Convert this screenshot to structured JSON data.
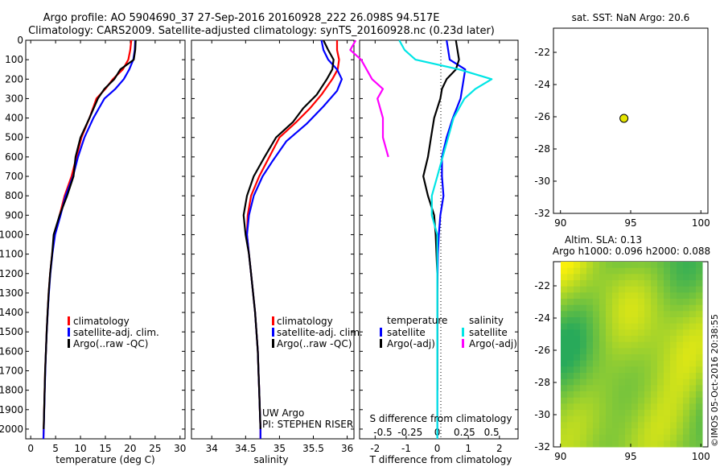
{
  "title_line1": "Argo profile: AO 5904690_37 27-Sep-2016 20160928_222 26.098S 94.517E",
  "title_line2": "Climatology: CARS2009. Satellite-adjusted climatology: synTS_20160928.nc (0.23d later)",
  "credit_line1": "UW Argo",
  "credit_line2": "PI: STEPHEN RISER",
  "watermark": "©IMOS 05-Oct-2016 20:38:55",
  "colors": {
    "climatology": "#ff0000",
    "satellite": "#0000ff",
    "argo": "#000000",
    "cyan": "#00e5e5",
    "magenta": "#ff00ff",
    "dot": "#e5e500"
  },
  "chart_data": [
    {
      "type": "line",
      "id": "temperature",
      "xlabel": "temperature (deg C)",
      "ylim": [
        2050,
        0
      ],
      "xlim": [
        -1,
        31
      ],
      "xticks": [
        0,
        5,
        10,
        15,
        20,
        25,
        30
      ],
      "yticks": [
        0,
        100,
        200,
        300,
        400,
        500,
        600,
        700,
        800,
        900,
        1000,
        1100,
        1200,
        1300,
        1400,
        1500,
        1600,
        1700,
        1800,
        1900,
        2000
      ],
      "legend": [
        "climatology",
        "satellite-adj. clim.",
        "Argo(..raw -QC)"
      ],
      "series": [
        {
          "name": "climatology",
          "color": "#ff0000",
          "points": [
            [
              20.2,
              0
            ],
            [
              20.0,
              50
            ],
            [
              19.6,
              100
            ],
            [
              18.5,
              150
            ],
            [
              16.5,
              200
            ],
            [
              15.0,
              250
            ],
            [
              13.2,
              300
            ],
            [
              11.8,
              400
            ],
            [
              10.2,
              500
            ],
            [
              9.2,
              600
            ],
            [
              8.2,
              700
            ],
            [
              6.8,
              800
            ],
            [
              5.8,
              900
            ],
            [
              4.8,
              1000
            ],
            [
              4.3,
              1100
            ],
            [
              3.9,
              1200
            ],
            [
              3.6,
              1300
            ],
            [
              3.4,
              1400
            ],
            [
              3.2,
              1500
            ],
            [
              3.05,
              1600
            ],
            [
              2.9,
              1700
            ],
            [
              2.8,
              1800
            ],
            [
              2.7,
              1900
            ],
            [
              2.6,
              2000
            ],
            [
              2.55,
              2050
            ]
          ]
        },
        {
          "name": "satellite-adj. clim.",
          "color": "#0000ff",
          "points": [
            [
              21.0,
              0
            ],
            [
              20.9,
              50
            ],
            [
              20.6,
              100
            ],
            [
              19.8,
              150
            ],
            [
              18.7,
              200
            ],
            [
              17.0,
              250
            ],
            [
              14.8,
              300
            ],
            [
              12.6,
              400
            ],
            [
              10.8,
              500
            ],
            [
              9.5,
              600
            ],
            [
              8.5,
              700
            ],
            [
              7.0,
              800
            ],
            [
              6.0,
              900
            ],
            [
              4.9,
              1000
            ],
            [
              4.35,
              1100
            ],
            [
              3.95,
              1200
            ],
            [
              3.65,
              1300
            ],
            [
              3.42,
              1400
            ],
            [
              3.22,
              1500
            ],
            [
              3.06,
              1600
            ],
            [
              2.92,
              1700
            ],
            [
              2.82,
              1800
            ],
            [
              2.72,
              1900
            ],
            [
              2.62,
              2000
            ],
            [
              2.56,
              2050
            ]
          ]
        },
        {
          "name": "Argo(..raw -QC)",
          "color": "#000000",
          "points": [
            [
              21.1,
              0
            ],
            [
              21.0,
              50
            ],
            [
              20.7,
              100
            ],
            [
              18.0,
              150
            ],
            [
              16.8,
              200
            ],
            [
              14.8,
              250
            ],
            [
              13.5,
              300
            ],
            [
              11.8,
              400
            ],
            [
              10.0,
              500
            ],
            [
              9.0,
              600
            ],
            [
              8.6,
              700
            ],
            [
              7.3,
              800
            ],
            [
              5.8,
              900
            ],
            [
              4.6,
              1000
            ],
            [
              4.3,
              1100
            ],
            [
              3.9,
              1200
            ],
            [
              3.6,
              1300
            ],
            [
              3.4,
              1400
            ],
            [
              3.2,
              1500
            ],
            [
              3.05,
              1600
            ],
            [
              2.9,
              1700
            ],
            [
              2.8,
              1800
            ],
            [
              2.7,
              1900
            ],
            [
              2.6,
              2000
            ]
          ]
        }
      ]
    },
    {
      "type": "line",
      "id": "salinity",
      "xlabel": "salinity",
      "ylim": [
        2050,
        0
      ],
      "xlim": [
        33.7,
        36.1
      ],
      "xticks": [
        34,
        34.5,
        35,
        35.5,
        36
      ],
      "legend": [
        "climatology",
        "satellite-adj. clim.",
        "Argo(..raw -QC)"
      ],
      "series": [
        {
          "name": "climatology",
          "color": "#ff0000",
          "points": [
            [
              35.85,
              0
            ],
            [
              35.85,
              50
            ],
            [
              35.88,
              100
            ],
            [
              35.86,
              150
            ],
            [
              35.78,
              200
            ],
            [
              35.62,
              280
            ],
            [
              35.45,
              350
            ],
            [
              35.25,
              420
            ],
            [
              35.0,
              500
            ],
            [
              34.85,
              600
            ],
            [
              34.7,
              700
            ],
            [
              34.58,
              800
            ],
            [
              34.53,
              900
            ],
            [
              34.52,
              1000
            ],
            [
              34.55,
              1100
            ],
            [
              34.58,
              1200
            ],
            [
              34.61,
              1300
            ],
            [
              34.64,
              1400
            ],
            [
              34.66,
              1500
            ],
            [
              34.68,
              1600
            ],
            [
              34.69,
              1700
            ],
            [
              34.7,
              1800
            ],
            [
              34.71,
              1900
            ],
            [
              34.72,
              2000
            ],
            [
              34.72,
              2050
            ]
          ]
        },
        {
          "name": "satellite-adj. clim.",
          "color": "#0000ff",
          "points": [
            [
              35.62,
              0
            ],
            [
              35.65,
              50
            ],
            [
              35.72,
              100
            ],
            [
              35.85,
              150
            ],
            [
              35.92,
              200
            ],
            [
              35.85,
              260
            ],
            [
              35.65,
              340
            ],
            [
              35.4,
              430
            ],
            [
              35.1,
              520
            ],
            [
              34.9,
              620
            ],
            [
              34.75,
              700
            ],
            [
              34.62,
              800
            ],
            [
              34.55,
              900
            ],
            [
              34.52,
              1000
            ],
            [
              34.55,
              1100
            ],
            [
              34.58,
              1200
            ],
            [
              34.61,
              1300
            ],
            [
              34.64,
              1400
            ],
            [
              34.66,
              1500
            ],
            [
              34.68,
              1600
            ],
            [
              34.69,
              1700
            ],
            [
              34.7,
              1800
            ],
            [
              34.71,
              1900
            ],
            [
              34.72,
              2000
            ],
            [
              34.72,
              2050
            ]
          ]
        },
        {
          "name": "Argo(..raw -QC)",
          "color": "#000000",
          "points": [
            [
              35.65,
              0
            ],
            [
              35.72,
              50
            ],
            [
              35.8,
              100
            ],
            [
              35.78,
              150
            ],
            [
              35.7,
              200
            ],
            [
              35.55,
              280
            ],
            [
              35.35,
              350
            ],
            [
              35.2,
              420
            ],
            [
              34.95,
              500
            ],
            [
              34.78,
              600
            ],
            [
              34.62,
              700
            ],
            [
              34.52,
              800
            ],
            [
              34.47,
              900
            ],
            [
              34.5,
              1000
            ],
            [
              34.55,
              1100
            ],
            [
              34.58,
              1200
            ],
            [
              34.61,
              1300
            ],
            [
              34.64,
              1400
            ],
            [
              34.66,
              1500
            ],
            [
              34.68,
              1600
            ],
            [
              34.69,
              1700
            ],
            [
              34.7,
              1800
            ],
            [
              34.71,
              1900
            ],
            [
              34.72,
              2000
            ]
          ]
        }
      ]
    },
    {
      "type": "line",
      "id": "difference",
      "xlabel": "T difference from climatology",
      "title": "S difference from climatology",
      "ylim": [
        2050,
        0
      ],
      "xlim": [
        -2.5,
        2.6
      ],
      "xticks": [
        -2,
        -1,
        0,
        1,
        2
      ],
      "xticklabels": [
        "-2",
        "-1",
        "0",
        "1",
        "2"
      ],
      "top_xticks": [
        -0.5,
        -0.25,
        0,
        0.25,
        0.5
      ],
      "top_xticklabels": [
        "-0.5",
        "-0.25",
        "0",
        "0.25",
        "0.5"
      ],
      "legend": {
        "temperature": [
          "satellite",
          "Argo(-adj)"
        ],
        "salinity": [
          "satellite",
          "Argo(-adj)"
        ]
      },
      "series": [
        {
          "name": "temperature satellite",
          "color": "#0000ff",
          "points": [
            [
              0.3,
              0
            ],
            [
              0.4,
              100
            ],
            [
              0.9,
              150
            ],
            [
              0.85,
              200
            ],
            [
              0.75,
              300
            ],
            [
              0.5,
              400
            ],
            [
              0.3,
              500
            ],
            [
              0.15,
              600
            ],
            [
              0.15,
              700
            ],
            [
              0.2,
              800
            ],
            [
              0.1,
              900
            ],
            [
              0.05,
              1000
            ],
            [
              0.02,
              1100
            ],
            [
              0.0,
              1300
            ],
            [
              0.0,
              2050
            ]
          ]
        },
        {
          "name": "temperature Argo(-adj)",
          "color": "#000000",
          "points": [
            [
              0.6,
              0
            ],
            [
              0.7,
              100
            ],
            [
              0.6,
              150
            ],
            [
              0.3,
              200
            ],
            [
              0.15,
              250
            ],
            [
              0.1,
              300
            ],
            [
              -0.1,
              400
            ],
            [
              -0.2,
              500
            ],
            [
              -0.3,
              600
            ],
            [
              -0.45,
              700
            ],
            [
              -0.3,
              800
            ],
            [
              -0.1,
              900
            ],
            [
              -0.05,
              1000
            ],
            [
              0.0,
              1200
            ],
            [
              0.0,
              1800
            ]
          ]
        },
        {
          "name": "salinity satellite",
          "color": "#00e5e5",
          "points": [
            [
              -0.35,
              0
            ],
            [
              -0.3,
              50
            ],
            [
              -0.2,
              100
            ],
            [
              0.2,
              150
            ],
            [
              0.5,
              200
            ],
            [
              0.35,
              250
            ],
            [
              0.25,
              300
            ],
            [
              0.15,
              400
            ],
            [
              0.1,
              500
            ],
            [
              0.05,
              600
            ],
            [
              0.0,
              700
            ],
            [
              -0.05,
              800
            ],
            [
              -0.05,
              900
            ],
            [
              0.0,
              1000
            ],
            [
              0.0,
              1500
            ],
            [
              0.0,
              2050
            ]
          ]
        },
        {
          "name": "salinity Argo(-adj)",
          "color": "#ff00ff",
          "points": [
            [
              -0.75,
              0
            ],
            [
              -0.8,
              50
            ],
            [
              -0.7,
              100
            ],
            [
              -0.6,
              200
            ],
            [
              -0.5,
              250
            ],
            [
              -0.55,
              300
            ],
            [
              -0.5,
              400
            ],
            [
              -0.5,
              500
            ],
            [
              -0.45,
              600
            ]
          ]
        }
      ]
    },
    {
      "type": "scatter",
      "id": "sst_map",
      "title": "sat. SST: NaN  Argo: 20.6",
      "xlim": [
        89.5,
        100.5
      ],
      "ylim": [
        -32,
        -20.5
      ],
      "xticks": [
        90,
        95,
        100
      ],
      "yticks": [
        -22,
        -24,
        -26,
        -28,
        -30,
        -32
      ],
      "points": [
        [
          94.52,
          -26.1
        ]
      ]
    },
    {
      "type": "heatmap",
      "id": "sla_map",
      "title_line1": "Altim. SLA: 0.13",
      "title_line2": "Argo h1000: 0.096 h2000: 0.088",
      "xlim": [
        89.5,
        100.5
      ],
      "ylim": [
        -32,
        -20.5
      ],
      "xticks": [
        90,
        95,
        100
      ],
      "yticks": [
        -22,
        -24,
        -26,
        -28,
        -30,
        -32
      ]
    }
  ]
}
